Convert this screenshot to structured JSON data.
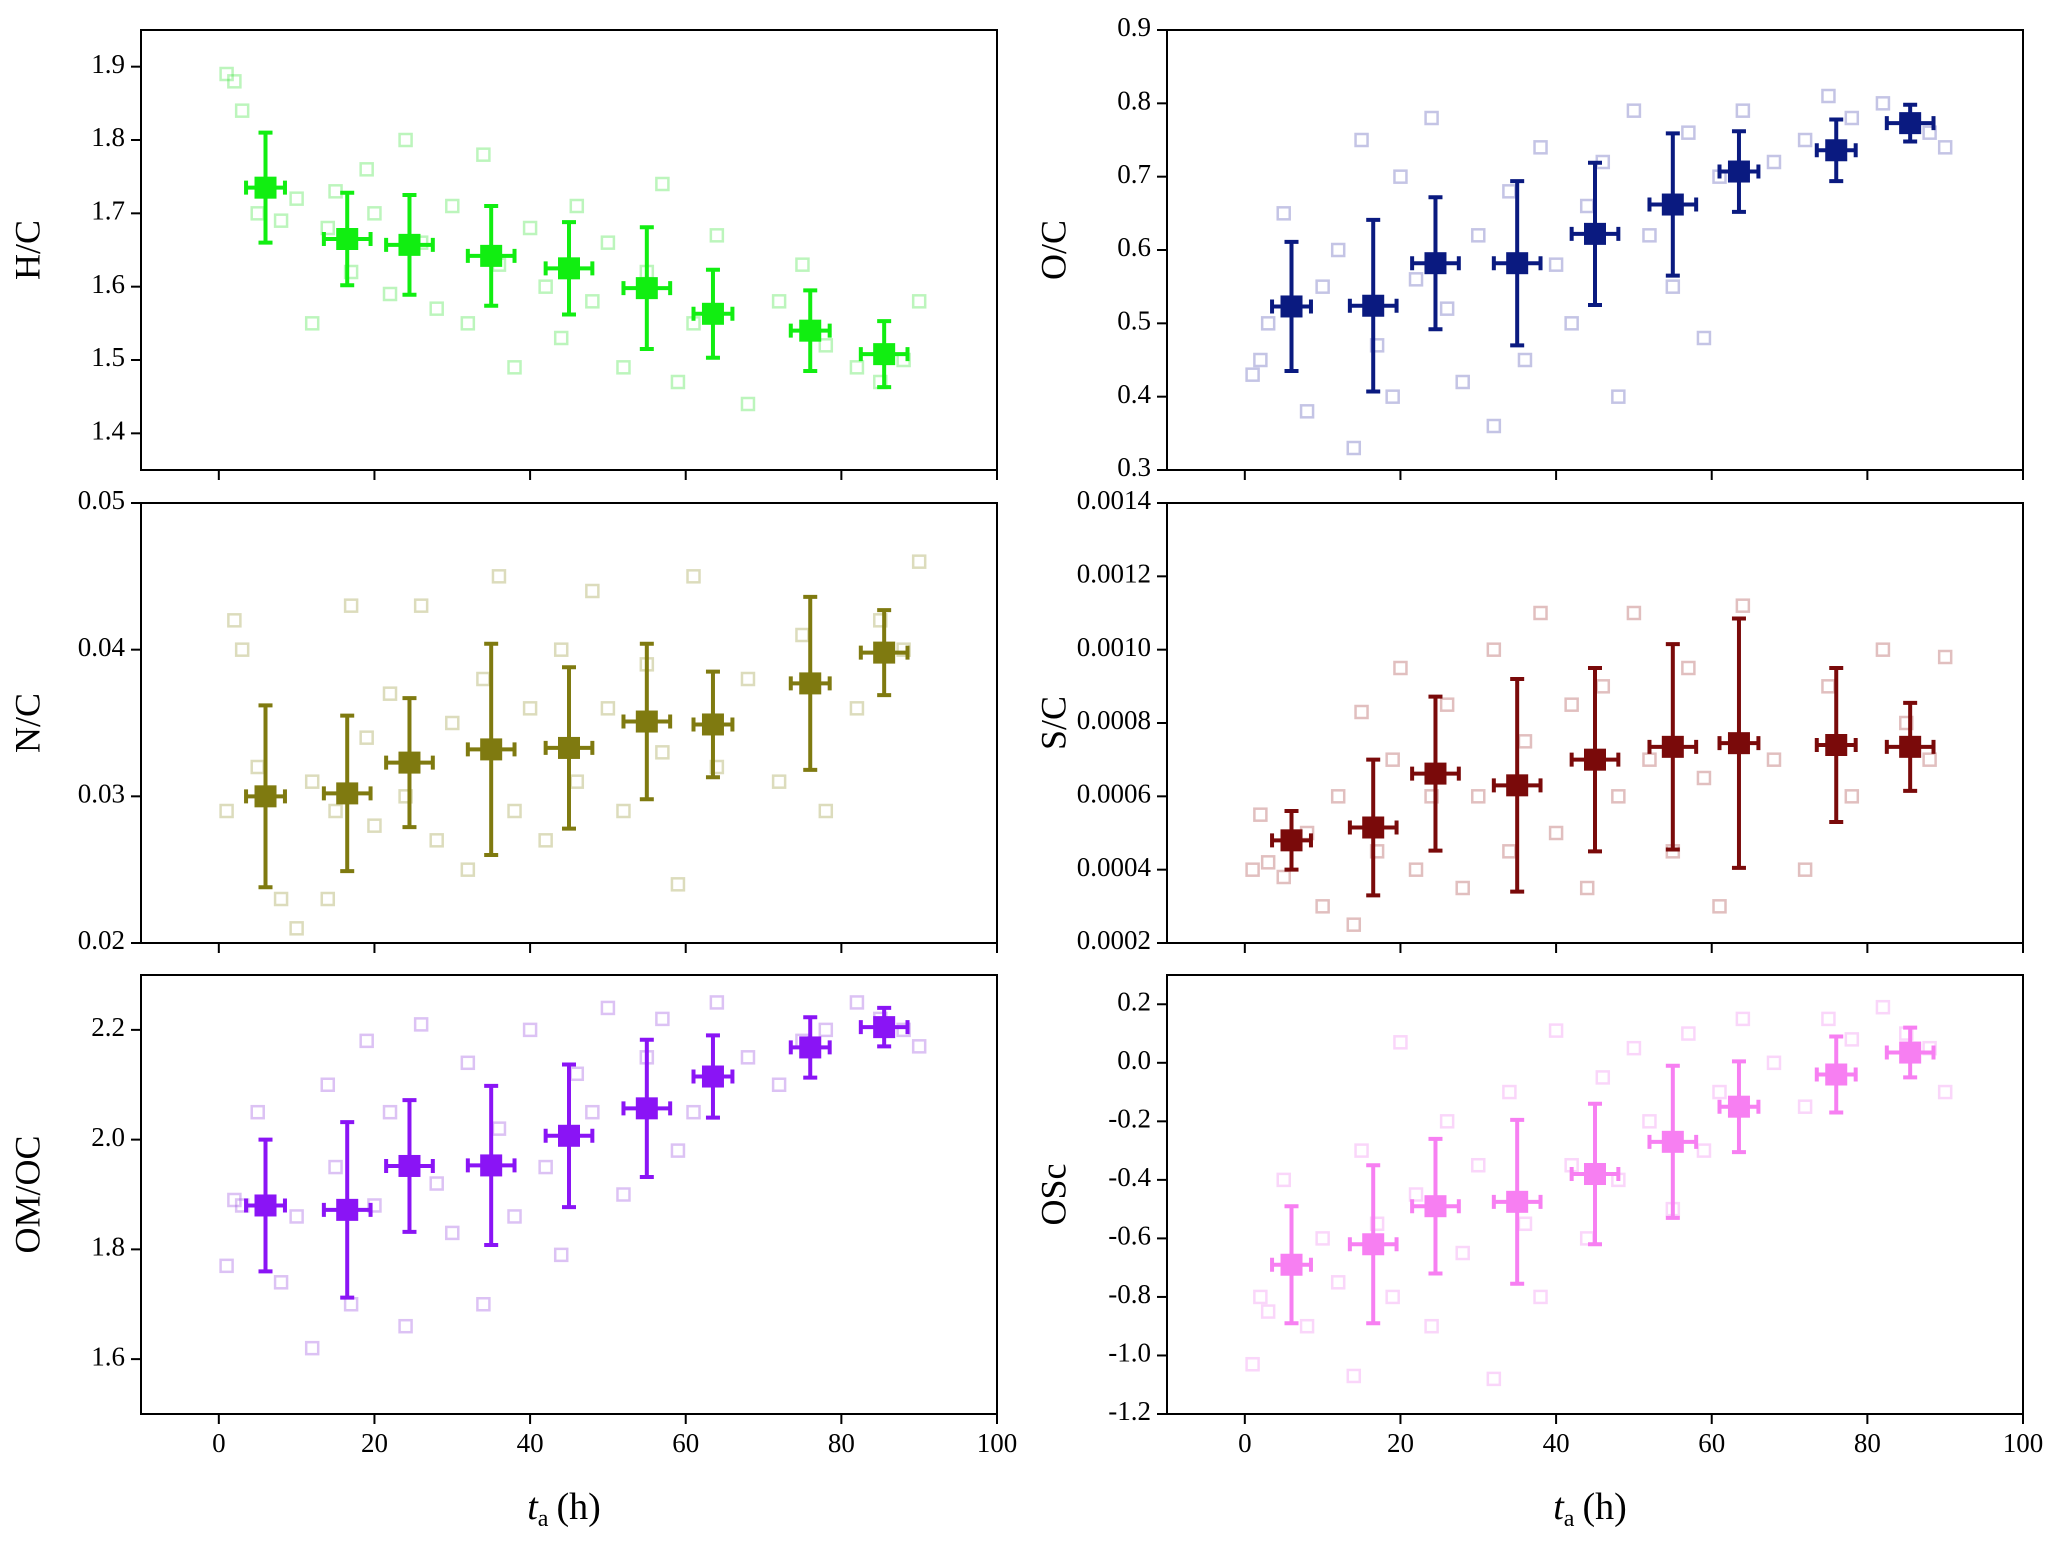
{
  "chart_data": [
    {
      "type": "scatter",
      "ylabel": "H/C",
      "xlim": [
        -10,
        100
      ],
      "ylim": [
        1.35,
        1.95
      ],
      "xticks": [
        0,
        20,
        40,
        60,
        80,
        100
      ],
      "yticks": [
        1.4,
        1.5,
        1.6,
        1.7,
        1.8,
        1.9
      ],
      "show_xtick_labels": false,
      "series": [
        {
          "color": "#22dd22",
          "marker": "open-square",
          "alpha": 0.3,
          "x": [
            1,
            2,
            3,
            5,
            8,
            10,
            12,
            14,
            15,
            17,
            19,
            20,
            22,
            24,
            26,
            28,
            30,
            32,
            34,
            36,
            38,
            40,
            42,
            44,
            46,
            48,
            50,
            52,
            55,
            57,
            59,
            61,
            64,
            68,
            72,
            75,
            78,
            82,
            85,
            88,
            90
          ],
          "values": [
            1.89,
            1.88,
            1.84,
            1.7,
            1.69,
            1.72,
            1.55,
            1.68,
            1.73,
            1.62,
            1.76,
            1.7,
            1.59,
            1.8,
            1.66,
            1.57,
            1.71,
            1.55,
            1.78,
            1.63,
            1.49,
            1.68,
            1.6,
            1.53,
            1.71,
            1.58,
            1.66,
            1.49,
            1.62,
            1.74,
            1.47,
            1.55,
            1.67,
            1.44,
            1.58,
            1.63,
            1.52,
            1.49,
            1.47,
            1.5,
            1.58
          ]
        },
        {
          "color": "#11ee11",
          "marker": "square",
          "x": [
            6,
            16.5,
            24.5,
            35,
            45,
            55,
            63.5,
            76,
            85.5
          ],
          "xerr": [
            2.5,
            3,
            3,
            3,
            3,
            3,
            2.5,
            2.5,
            3
          ],
          "values": [
            1.735,
            1.665,
            1.657,
            1.642,
            1.625,
            1.598,
            1.563,
            1.54,
            1.508
          ],
          "yerr": [
            0.075,
            0.063,
            0.068,
            0.068,
            0.063,
            0.083,
            0.06,
            0.055,
            0.045
          ]
        }
      ]
    },
    {
      "type": "scatter",
      "ylabel": "O/C",
      "xlim": [
        -10,
        100
      ],
      "ylim": [
        0.3,
        0.9
      ],
      "xticks": [
        0,
        20,
        40,
        60,
        80,
        100
      ],
      "yticks": [
        0.3,
        0.4,
        0.5,
        0.6,
        0.7,
        0.8,
        0.9
      ],
      "show_xtick_labels": false,
      "series": [
        {
          "color": "#3a3aa8",
          "marker": "open-square",
          "alpha": 0.3,
          "x": [
            1,
            2,
            3,
            5,
            8,
            10,
            12,
            14,
            15,
            17,
            19,
            20,
            22,
            24,
            26,
            28,
            30,
            32,
            34,
            36,
            38,
            40,
            42,
            44,
            46,
            48,
            50,
            52,
            55,
            57,
            59,
            61,
            64,
            68,
            72,
            75,
            78,
            82,
            85,
            88,
            90
          ],
          "values": [
            0.43,
            0.45,
            0.5,
            0.65,
            0.38,
            0.55,
            0.6,
            0.33,
            0.75,
            0.47,
            0.4,
            0.7,
            0.56,
            0.78,
            0.52,
            0.42,
            0.62,
            0.36,
            0.68,
            0.45,
            0.74,
            0.58,
            0.5,
            0.66,
            0.72,
            0.4,
            0.79,
            0.62,
            0.55,
            0.76,
            0.48,
            0.7,
            0.79,
            0.72,
            0.75,
            0.81,
            0.78,
            0.8,
            0.77,
            0.76,
            0.74
          ]
        },
        {
          "color": "#0a1a80",
          "marker": "square",
          "x": [
            6,
            16.5,
            24.5,
            35,
            45,
            55,
            63.5,
            76,
            85.5
          ],
          "xerr": [
            2.5,
            3,
            3,
            3,
            3,
            3,
            2.5,
            2.5,
            3
          ],
          "values": [
            0.523,
            0.524,
            0.582,
            0.582,
            0.622,
            0.662,
            0.707,
            0.736,
            0.773
          ],
          "yerr": [
            0.088,
            0.117,
            0.09,
            0.112,
            0.097,
            0.097,
            0.055,
            0.042,
            0.025
          ]
        }
      ]
    },
    {
      "type": "scatter",
      "ylabel": "N/C",
      "xlim": [
        -10,
        100
      ],
      "ylim": [
        0.02,
        0.05
      ],
      "xticks": [
        0,
        20,
        40,
        60,
        80,
        100
      ],
      "yticks": [
        0.02,
        0.03,
        0.04,
        0.05
      ],
      "show_xtick_labels": false,
      "series": [
        {
          "color": "#8a8a20",
          "marker": "open-square",
          "alpha": 0.3,
          "x": [
            1,
            2,
            3,
            5,
            8,
            10,
            12,
            14,
            15,
            17,
            19,
            20,
            22,
            24,
            26,
            28,
            30,
            32,
            34,
            36,
            38,
            40,
            42,
            44,
            46,
            48,
            50,
            52,
            55,
            57,
            59,
            61,
            64,
            68,
            72,
            75,
            78,
            82,
            85,
            88,
            90
          ],
          "values": [
            0.029,
            0.042,
            0.04,
            0.032,
            0.023,
            0.021,
            0.031,
            0.023,
            0.029,
            0.043,
            0.034,
            0.028,
            0.037,
            0.03,
            0.043,
            0.027,
            0.035,
            0.025,
            0.038,
            0.045,
            0.029,
            0.036,
            0.027,
            0.04,
            0.031,
            0.044,
            0.036,
            0.029,
            0.039,
            0.033,
            0.024,
            0.045,
            0.032,
            0.038,
            0.031,
            0.041,
            0.029,
            0.036,
            0.042,
            0.04,
            0.046
          ]
        },
        {
          "color": "#7f7a10",
          "marker": "square",
          "x": [
            6,
            16.5,
            24.5,
            35,
            45,
            55,
            63.5,
            76,
            85.5
          ],
          "xerr": [
            2.5,
            3,
            3,
            3,
            3,
            3,
            2.5,
            2.5,
            3
          ],
          "values": [
            0.03,
            0.0302,
            0.0323,
            0.0332,
            0.0333,
            0.0351,
            0.0349,
            0.0377,
            0.0398
          ],
          "yerr": [
            0.0062,
            0.0053,
            0.0044,
            0.0072,
            0.0055,
            0.0053,
            0.0036,
            0.0059,
            0.0029
          ]
        }
      ]
    },
    {
      "type": "scatter",
      "ylabel": "S/C",
      "xlim": [
        -10,
        100
      ],
      "ylim": [
        0.0002,
        0.0014
      ],
      "xticks": [
        0,
        20,
        40,
        60,
        80,
        100
      ],
      "yticks": [
        0.0002,
        0.0004,
        0.0006,
        0.0008,
        {
          "value": 0.001,
          "label": "0.0010"
        },
        0.0012,
        0.0014
      ],
      "show_xtick_labels": false,
      "series": [
        {
          "color": "#9a2a2a",
          "marker": "open-square",
          "alpha": 0.3,
          "x": [
            1,
            2,
            3,
            5,
            8,
            10,
            12,
            14,
            15,
            17,
            19,
            20,
            22,
            24,
            26,
            28,
            30,
            32,
            34,
            36,
            38,
            40,
            42,
            44,
            46,
            48,
            50,
            52,
            55,
            57,
            59,
            61,
            64,
            68,
            72,
            75,
            78,
            82,
            85,
            88,
            90
          ],
          "values": [
            0.0004,
            0.00055,
            0.00042,
            0.00038,
            0.0005,
            0.0003,
            0.0006,
            0.00025,
            0.00083,
            0.00045,
            0.0007,
            0.00095,
            0.0004,
            0.0006,
            0.00085,
            0.00035,
            0.0006,
            0.001,
            0.00045,
            0.00075,
            0.0011,
            0.0005,
            0.00085,
            0.00035,
            0.0009,
            0.0006,
            0.0011,
            0.0007,
            0.00045,
            0.00095,
            0.00065,
            0.0003,
            0.00112,
            0.0007,
            0.0004,
            0.0009,
            0.0006,
            0.001,
            0.0008,
            0.0007,
            0.00098
          ]
        },
        {
          "color": "#7a0a0a",
          "marker": "square",
          "x": [
            6,
            16.5,
            24.5,
            35,
            45,
            55,
            63.5,
            76,
            85.5
          ],
          "xerr": [
            2.5,
            3,
            3,
            3,
            3,
            3,
            2.5,
            2.5,
            3
          ],
          "values": [
            0.00048,
            0.000515,
            0.000662,
            0.00063,
            0.0007,
            0.000735,
            0.000745,
            0.00074,
            0.000735
          ],
          "yerr": [
            8e-05,
            0.000185,
            0.00021,
            0.00029,
            0.00025,
            0.00028,
            0.00034,
            0.00021,
            0.00012
          ]
        }
      ]
    },
    {
      "type": "scatter",
      "ylabel": "OM/OC",
      "xlim": [
        -10,
        100
      ],
      "ylim": [
        1.5,
        2.3
      ],
      "xticks": [
        0,
        20,
        40,
        60,
        80,
        100
      ],
      "yticks": [
        1.6,
        1.8,
        {
          "value": 2,
          "label": "2.0"
        },
        2.2
      ],
      "show_xtick_labels": true,
      "xlabel": "t",
      "xlabel_sub": "a",
      "xlabel_unit": "(h)",
      "series": [
        {
          "color": "#9a50e0",
          "marker": "open-square",
          "alpha": 0.35,
          "x": [
            1,
            2,
            3,
            5,
            8,
            10,
            12,
            14,
            15,
            17,
            19,
            20,
            22,
            24,
            26,
            28,
            30,
            32,
            34,
            36,
            38,
            40,
            42,
            44,
            46,
            48,
            50,
            52,
            55,
            57,
            59,
            61,
            64,
            68,
            72,
            75,
            78,
            82,
            85,
            88,
            90
          ],
          "values": [
            1.77,
            1.89,
            1.88,
            2.05,
            1.74,
            1.86,
            1.62,
            2.1,
            1.95,
            1.7,
            2.18,
            1.88,
            2.05,
            1.66,
            2.21,
            1.92,
            1.83,
            2.14,
            1.7,
            2.02,
            1.86,
            2.2,
            1.95,
            1.79,
            2.12,
            2.05,
            2.24,
            1.9,
            2.15,
            2.22,
            1.98,
            2.05,
            2.25,
            2.15,
            2.1,
            2.18,
            2.2,
            2.25,
            2.22,
            2.2,
            2.17
          ]
        },
        {
          "color": "#8a14f5",
          "marker": "square",
          "x": [
            6,
            16.5,
            24.5,
            35,
            45,
            55,
            63.5,
            76,
            85.5
          ],
          "xerr": [
            2.5,
            3,
            3,
            3,
            3,
            3,
            2.5,
            2.5,
            3
          ],
          "values": [
            1.88,
            1.872,
            1.952,
            1.953,
            2.007,
            2.057,
            2.115,
            2.168,
            2.205
          ],
          "yerr": [
            0.12,
            0.16,
            0.12,
            0.145,
            0.13,
            0.125,
            0.075,
            0.055,
            0.035
          ]
        }
      ]
    },
    {
      "type": "scatter",
      "ylabel": "OSc",
      "xlim": [
        -10,
        100
      ],
      "ylim": [
        -1.2,
        0.3
      ],
      "xticks": [
        0,
        20,
        40,
        60,
        80,
        100
      ],
      "yticks": [
        -1.2,
        {
          "value": -1,
          "label": "-1.0"
        },
        -0.8,
        -0.6,
        -0.4,
        -0.2,
        {
          "value": 0,
          "label": "0.0"
        },
        0.2
      ],
      "show_xtick_labels": true,
      "xlabel": "t",
      "xlabel_sub": "a",
      "xlabel_unit": "(h)",
      "series": [
        {
          "color": "#f08af0",
          "marker": "open-square",
          "alpha": 0.35,
          "x": [
            1,
            2,
            3,
            5,
            8,
            10,
            12,
            14,
            15,
            17,
            19,
            20,
            22,
            24,
            26,
            28,
            30,
            32,
            34,
            36,
            38,
            40,
            42,
            44,
            46,
            48,
            50,
            52,
            55,
            57,
            59,
            61,
            64,
            68,
            72,
            75,
            78,
            82,
            85,
            88,
            90
          ],
          "values": [
            -1.03,
            -0.8,
            -0.85,
            -0.4,
            -0.9,
            -0.6,
            -0.75,
            -1.07,
            -0.3,
            -0.55,
            -0.8,
            0.07,
            -0.45,
            -0.9,
            -0.2,
            -0.65,
            -0.35,
            -1.08,
            -0.1,
            -0.55,
            -0.8,
            0.11,
            -0.35,
            -0.6,
            -0.05,
            -0.4,
            0.05,
            -0.2,
            -0.5,
            0.1,
            -0.3,
            -0.1,
            0.15,
            0.0,
            -0.15,
            0.15,
            0.08,
            0.19,
            0.1,
            0.05,
            -0.1
          ]
        },
        {
          "color": "#f77ff2",
          "marker": "square",
          "x": [
            6,
            16.5,
            24.5,
            35,
            45,
            55,
            63.5,
            76,
            85.5
          ],
          "xerr": [
            2.5,
            3,
            3,
            3,
            3,
            3,
            2.5,
            2.5,
            3
          ],
          "values": [
            -0.69,
            -0.62,
            -0.49,
            -0.475,
            -0.38,
            -0.27,
            -0.15,
            -0.04,
            0.035
          ],
          "yerr": [
            0.2,
            0.27,
            0.23,
            0.28,
            0.24,
            0.26,
            0.155,
            0.13,
            0.085
          ]
        }
      ]
    }
  ]
}
